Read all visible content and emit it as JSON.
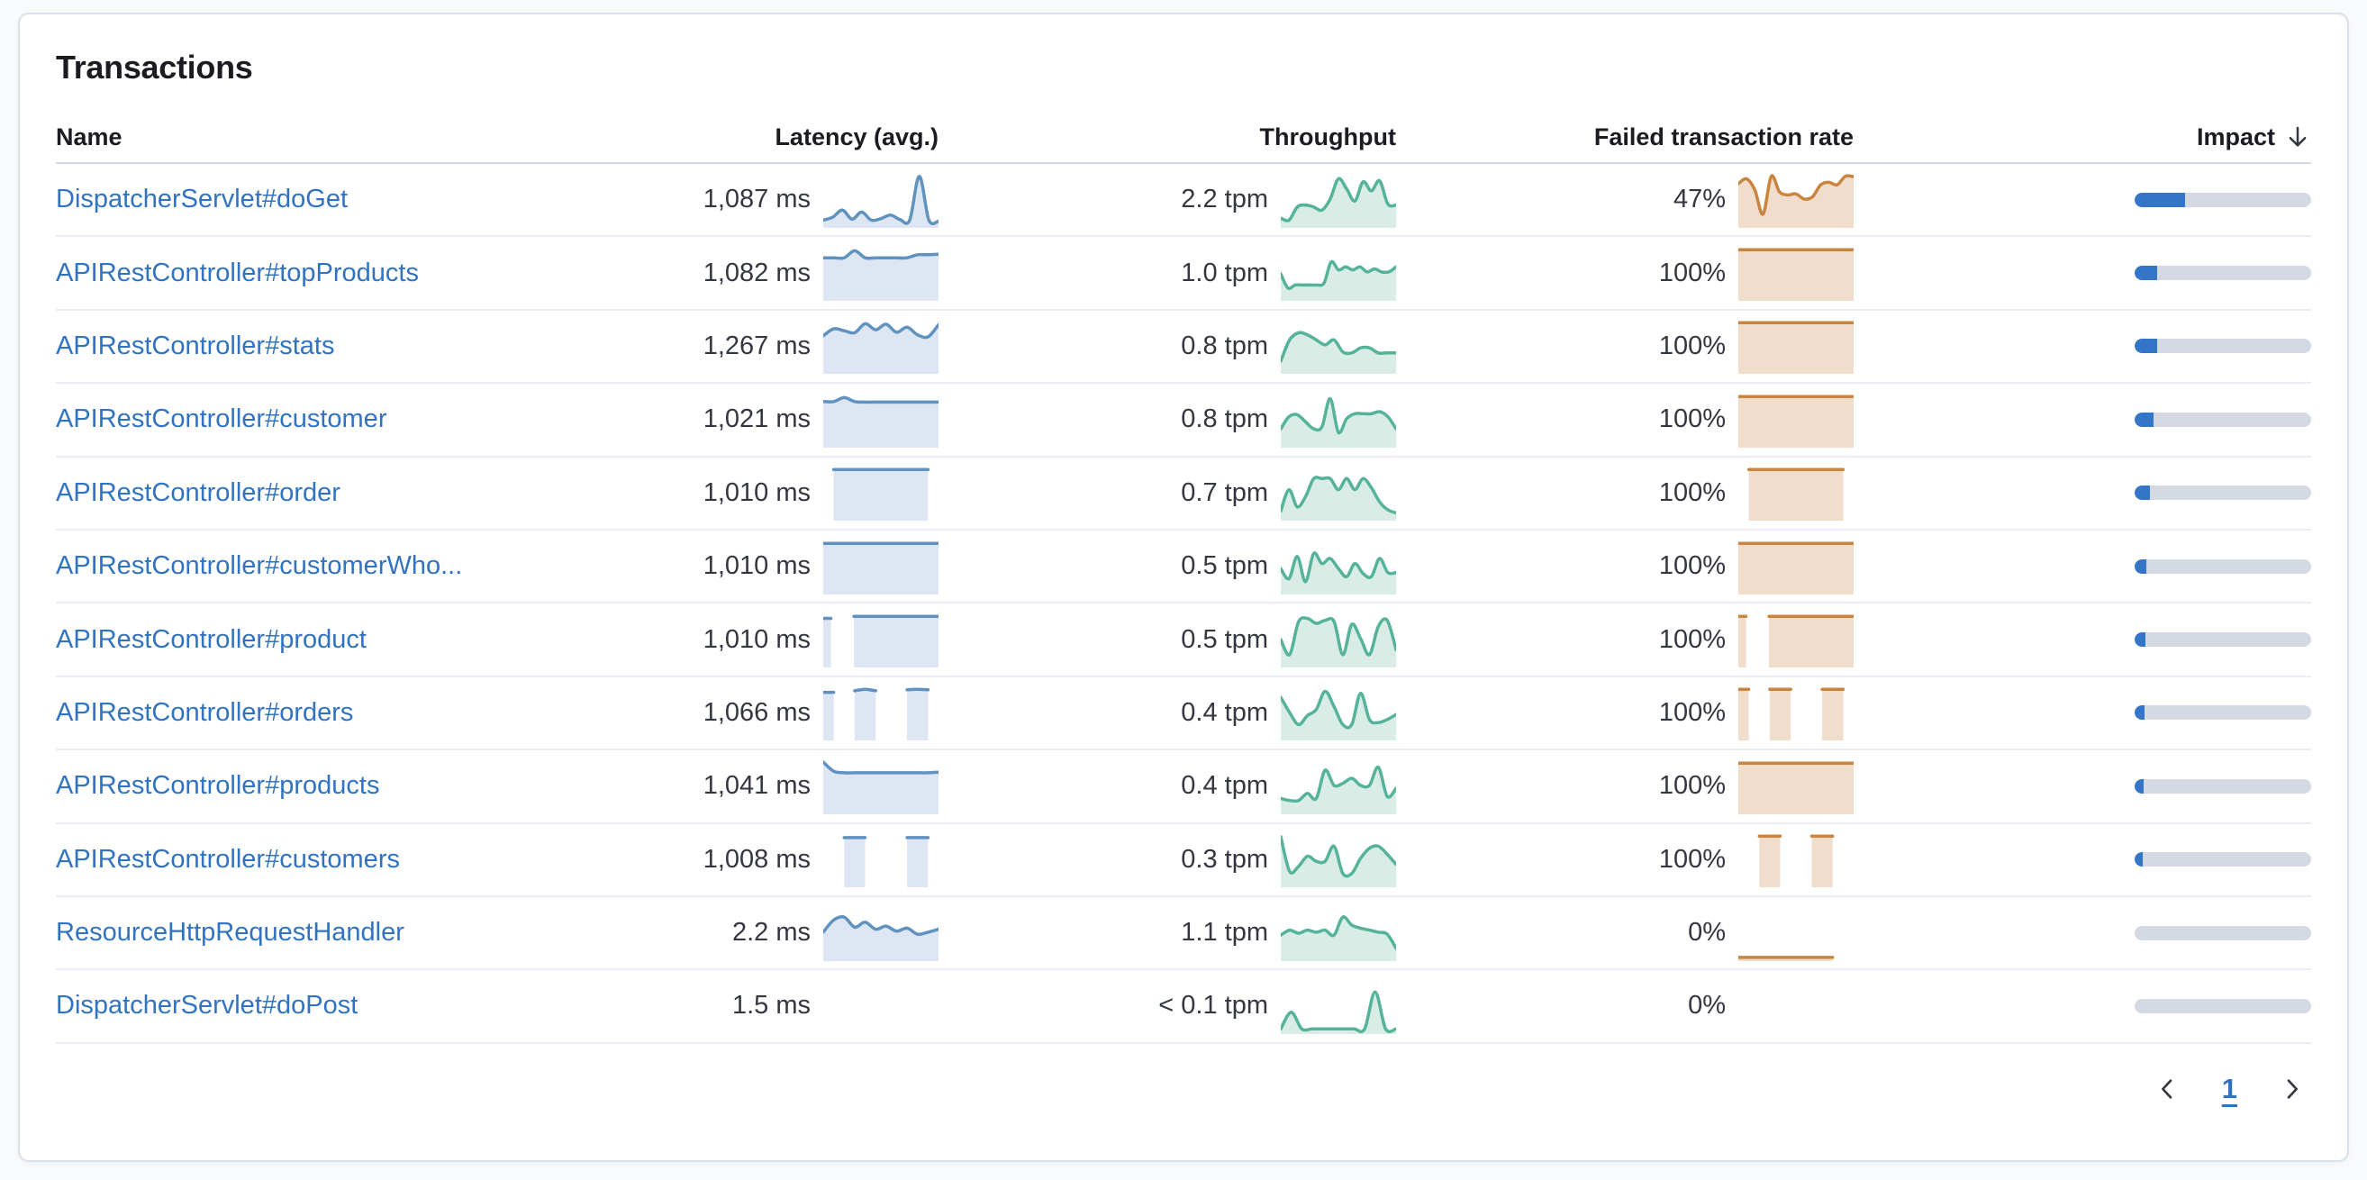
{
  "panel": {
    "title": "Transactions"
  },
  "table": {
    "headers": {
      "name": "Name",
      "latency": "Latency (avg.)",
      "throughput": "Throughput",
      "failed_rate": "Failed transaction rate",
      "impact": "Impact"
    },
    "sort": {
      "column": "Impact",
      "direction": "descending",
      "icon": "arrow-down"
    }
  },
  "colors": {
    "link": "#3173c0",
    "text": "#343741",
    "heading": "#1a1c21",
    "latency_line": "#6092c0",
    "latency_fill": "#dde6f2",
    "throughput_line": "#54b399",
    "throughput_fill": "#d9ece5",
    "failed_line": "#c9853f",
    "failed_fill": "#f0ddcb",
    "impact_fill": "#3475c8",
    "impact_track": "#d4d9e4"
  },
  "rows": [
    {
      "name": "DispatcherServlet#doGet",
      "latency": "1,087 ms",
      "throughput": "2.2 tpm",
      "failed_rate": "47%",
      "impact_pct": 28.5,
      "latency_spark": [
        0.1,
        0.16,
        0.3,
        0.12,
        0.26,
        0.1,
        0.13,
        0.2,
        0.11,
        0.1,
        0.97,
        0.1,
        0.08
      ],
      "throughput_spark": [
        0.14,
        0.1,
        0.36,
        0.4,
        0.36,
        0.3,
        0.52,
        0.92,
        0.72,
        0.48,
        0.86,
        0.68,
        0.88,
        0.42,
        0.4
      ],
      "failed_spark": [
        0.82,
        0.92,
        0.7,
        0.22,
        0.97,
        0.66,
        0.6,
        0.62,
        0.52,
        0.56,
        0.8,
        0.85,
        0.8,
        0.97,
        0.96
      ]
    },
    {
      "name": "APIRestController#topProducts",
      "latency": "1,082 ms",
      "throughput": "1.0 tpm",
      "failed_rate": "100%",
      "impact_pct": 12.5,
      "latency_spark": [
        0.8,
        0.8,
        0.8,
        0.94,
        0.8,
        0.8,
        0.8,
        0.8,
        0.8,
        0.86,
        0.86,
        0.87
      ],
      "throughput_spark": [
        0.48,
        0.2,
        0.26,
        0.26,
        0.26,
        0.26,
        0.3,
        0.72,
        0.56,
        0.62,
        0.56,
        0.62,
        0.52,
        0.58,
        0.52,
        0.52,
        0.62
      ],
      "failed_spark": [
        0.96,
        0.96,
        0.96,
        0.96,
        0.96,
        0.96,
        0.96,
        0.96,
        0.96,
        0.96,
        0.96,
        0.96
      ]
    },
    {
      "name": "APIRestController#stats",
      "latency": "1,267 ms",
      "throughput": "0.8 tpm",
      "failed_rate": "100%",
      "impact_pct": 12.5,
      "latency_spark": [
        0.7,
        0.84,
        0.8,
        0.76,
        0.94,
        0.82,
        0.93,
        0.77,
        0.87,
        0.72,
        0.68,
        0.92
      ],
      "throughput_spark": [
        0.2,
        0.62,
        0.76,
        0.72,
        0.62,
        0.52,
        0.62,
        0.38,
        0.36,
        0.46,
        0.46,
        0.36,
        0.36,
        0.36
      ],
      "failed_spark": [
        0.96,
        0.96,
        0.96,
        0.96,
        0.96,
        0.96,
        0.96,
        0.96,
        0.96,
        0.96,
        0.96,
        0.96
      ]
    },
    {
      "name": "APIRestController#customer",
      "latency": "1,021 ms",
      "throughput": "0.8 tpm",
      "failed_rate": "100%",
      "impact_pct": 10.5,
      "latency_spark": [
        0.86,
        0.86,
        0.94,
        0.86,
        0.85,
        0.85,
        0.85,
        0.85,
        0.85,
        0.85,
        0.85,
        0.85
      ],
      "throughput_spark": [
        0.32,
        0.56,
        0.6,
        0.46,
        0.32,
        0.36,
        0.92,
        0.25,
        0.52,
        0.62,
        0.62,
        0.62,
        0.66,
        0.56,
        0.32
      ],
      "failed_spark": [
        0.96,
        0.96,
        0.96,
        0.96,
        0.96,
        0.96,
        0.96,
        0.96,
        0.96,
        0.96,
        0.96,
        0.96
      ]
    },
    {
      "name": "APIRestController#order",
      "latency": "1,010 ms",
      "throughput": "0.7 tpm",
      "failed_rate": "100%",
      "impact_pct": 8.8,
      "latency_spark": [
        null,
        0.96,
        0.96,
        0.96,
        0.96,
        0.96,
        0.96,
        0.96,
        0.96,
        0.96,
        0.96,
        null
      ],
      "throughput_spark": [
        0.14,
        0.56,
        0.22,
        0.42,
        0.78,
        0.78,
        0.78,
        0.56,
        0.78,
        0.56,
        0.78,
        0.6,
        0.32,
        0.16,
        0.1
      ],
      "failed_spark": [
        null,
        0.96,
        0.96,
        0.96,
        0.96,
        0.96,
        0.96,
        0.96,
        0.96,
        0.96,
        0.96,
        null
      ]
    },
    {
      "name": "APIRestController#customerWho...",
      "latency": "1,010 ms",
      "throughput": "0.5 tpm",
      "failed_rate": "100%",
      "impact_pct": 6.5,
      "latency_spark": [
        0.96,
        0.96,
        0.96,
        0.96,
        0.96,
        0.96,
        0.96,
        0.96,
        0.96,
        0.96,
        0.96,
        0.96
      ],
      "throughput_spark": [
        0.46,
        0.26,
        0.7,
        0.2,
        0.76,
        0.56,
        0.66,
        0.46,
        0.3,
        0.56,
        0.36,
        0.3,
        0.66,
        0.38,
        0.38
      ],
      "failed_spark": [
        0.96,
        0.96,
        0.96,
        0.96,
        0.96,
        0.96,
        0.96,
        0.96,
        0.96,
        0.96,
        0.96,
        0.96
      ]
    },
    {
      "name": "APIRestController#product",
      "latency": "1,010 ms",
      "throughput": "0.5 tpm",
      "failed_rate": "100%",
      "impact_pct": 6.0,
      "latency_spark": [
        0.92,
        0.92,
        null,
        null,
        0.96,
        0.96,
        0.96,
        0.96,
        0.96,
        0.96,
        0.96,
        0.96,
        0.96,
        0.96,
        0.96,
        0.96
      ],
      "throughput_spark": [
        0.5,
        0.2,
        0.85,
        0.92,
        0.82,
        0.88,
        0.86,
        0.2,
        0.8,
        0.52,
        0.2,
        0.76,
        0.88,
        0.3
      ],
      "failed_spark": [
        0.96,
        0.96,
        null,
        null,
        0.96,
        0.96,
        0.96,
        0.96,
        0.96,
        0.96,
        0.96,
        0.96,
        0.96,
        0.96,
        0.96,
        0.96
      ]
    },
    {
      "name": "APIRestController#orders",
      "latency": "1,066 ms",
      "throughput": "0.4 tpm",
      "failed_rate": "100%",
      "impact_pct": 5.5,
      "latency_spark": [
        0.9,
        0.9,
        null,
        0.93,
        0.96,
        0.93,
        null,
        null,
        0.95,
        0.96,
        0.95,
        null
      ],
      "throughput_spark": [
        0.8,
        0.5,
        0.26,
        0.44,
        0.56,
        0.92,
        0.62,
        0.26,
        0.26,
        0.88,
        0.36,
        0.3,
        0.36,
        0.46
      ],
      "failed_spark": [
        0.96,
        0.96,
        null,
        0.96,
        0.96,
        0.96,
        null,
        null,
        0.96,
        0.96,
        0.96,
        null
      ]
    },
    {
      "name": "APIRestController#products",
      "latency": "1,041 ms",
      "throughput": "0.4 tpm",
      "failed_rate": "100%",
      "impact_pct": 5.0,
      "latency_spark": [
        0.98,
        0.8,
        0.77,
        0.77,
        0.77,
        0.77,
        0.77,
        0.77,
        0.77,
        0.77,
        0.77,
        0.78
      ],
      "throughput_spark": [
        0.26,
        0.22,
        0.22,
        0.36,
        0.26,
        0.82,
        0.52,
        0.56,
        0.66,
        0.52,
        0.52,
        0.88,
        0.3,
        0.46
      ],
      "failed_spark": [
        0.96,
        0.96,
        0.96,
        0.96,
        0.96,
        0.96,
        0.96,
        0.96,
        0.96,
        0.96,
        0.96,
        0.96
      ]
    },
    {
      "name": "APIRestController#customers",
      "latency": "1,008 ms",
      "throughput": "0.3 tpm",
      "failed_rate": "100%",
      "impact_pct": 4.5,
      "latency_spark": [
        null,
        null,
        0.93,
        0.93,
        0.93,
        null,
        null,
        null,
        0.93,
        0.93,
        0.93,
        null
      ],
      "throughput_spark": [
        0.95,
        0.26,
        0.36,
        0.56,
        0.46,
        0.46,
        0.76,
        0.22,
        0.22,
        0.52,
        0.72,
        0.76,
        0.6,
        0.4
      ],
      "failed_spark": [
        null,
        null,
        0.96,
        0.96,
        0.96,
        null,
        null,
        0.96,
        0.96,
        0.96,
        null,
        null
      ]
    },
    {
      "name": "ResourceHttpRequestHandler",
      "latency": "2.2 ms",
      "throughput": "1.1 tpm",
      "failed_rate": "0%",
      "impact_pct": 0,
      "latency_spark": [
        0.52,
        0.76,
        0.82,
        0.62,
        0.72,
        0.58,
        0.64,
        0.54,
        0.6,
        0.48,
        0.52,
        0.58
      ],
      "throughput_spark": [
        0.46,
        0.56,
        0.5,
        0.56,
        0.52,
        0.56,
        0.46,
        0.82,
        0.66,
        0.6,
        0.56,
        0.52,
        0.48,
        0.2
      ],
      "failed_spark": [
        0.02,
        0.02,
        0.02,
        0.02,
        0.02,
        0.02,
        0.02,
        0.02,
        0.02,
        0.02,
        null,
        null
      ]
    },
    {
      "name": "DispatcherServlet#doPost",
      "latency": "1.5 ms",
      "throughput": "< 0.1 tpm",
      "failed_rate": "0%",
      "impact_pct": 0,
      "latency_spark": null,
      "throughput_spark": [
        0.05,
        0.38,
        0.05,
        0.05,
        0.05,
        0.05,
        0.05,
        0.05,
        0.05,
        0.78,
        0.05,
        0.05
      ],
      "failed_spark": null
    }
  ],
  "pagination": {
    "prev_icon": "chevron-left",
    "next_icon": "chevron-right",
    "current_page": "1"
  }
}
